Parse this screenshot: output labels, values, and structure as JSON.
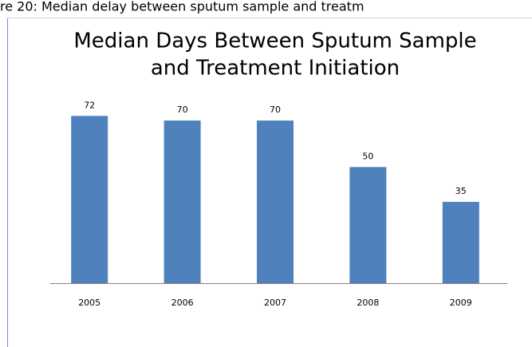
{
  "caption": "re 20: Median delay between sputum sample and treatm",
  "chart_data": {
    "type": "bar",
    "title": [
      "Median Days Between Sputum Sample",
      "and Treatment Initiation"
    ],
    "categories": [
      "2005",
      "2006",
      "2007",
      "2008",
      "2009"
    ],
    "values": [
      72,
      70,
      70,
      50,
      35
    ],
    "color": "#4f81bd",
    "ylim": [
      0,
      80
    ]
  }
}
